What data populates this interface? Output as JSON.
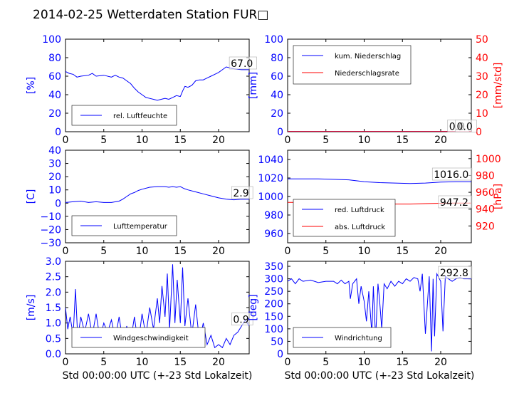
{
  "figure_title": "2014-02-25 Wetterdaten Station FUR□",
  "colors": {
    "blue": "#0000ff",
    "red": "#ff0000",
    "black": "#000000"
  },
  "chart_data": [
    {
      "id": "humidity",
      "type": "line",
      "xlim": [
        0,
        24
      ],
      "x_ticks": [
        "0",
        "5",
        "10",
        "15",
        "20"
      ],
      "ylim": [
        0,
        100
      ],
      "y_ticks": [
        "0",
        "20",
        "40",
        "60",
        "80",
        "100"
      ],
      "ylabel": "[%]",
      "xlabel": "",
      "grid": false,
      "legend_placement": "lower-left",
      "series": [
        {
          "name": "rel. Luftfeuchte",
          "color": "#0000ff",
          "x": [
            0,
            0.5,
            1,
            1.5,
            2,
            3,
            3.5,
            4,
            5,
            6,
            6.5,
            7,
            7.5,
            8,
            8.5,
            9,
            9.5,
            10,
            10.5,
            11,
            11.5,
            12,
            12.5,
            13,
            13.5,
            14,
            14.5,
            15,
            15.3,
            15.6,
            16,
            16.5,
            17,
            17.5,
            18,
            18.5,
            19,
            19.5,
            20,
            20.5,
            21,
            22,
            23,
            24
          ],
          "y": [
            65,
            63,
            62,
            59,
            60,
            61,
            63,
            60,
            61,
            59,
            61,
            59,
            58,
            55,
            52,
            47,
            43,
            40,
            37,
            36,
            35,
            34,
            35,
            36,
            35,
            37,
            39,
            38,
            44,
            49,
            48,
            50,
            55,
            56,
            56,
            58,
            60,
            62,
            64,
            67,
            70,
            68,
            67,
            67
          ]
        }
      ],
      "annotations": [
        {
          "text": "67.0",
          "x": 21.5,
          "y": 70
        }
      ]
    },
    {
      "id": "precipitation",
      "type": "line",
      "xlim": [
        0,
        24
      ],
      "x_ticks": [
        "0",
        "5",
        "10",
        "15",
        "20"
      ],
      "ylim": [
        0,
        100
      ],
      "y_ticks": [
        "0",
        "20",
        "40",
        "60",
        "80",
        "100"
      ],
      "ylabel": "[mm]",
      "ylim_right": [
        0,
        50
      ],
      "y_ticks_right": [
        "0",
        "10",
        "20",
        "30",
        "40",
        "50"
      ],
      "ylabel_right": "[mm/std]",
      "xlabel": "",
      "grid": false,
      "legend_placement": "upper-left",
      "series": [
        {
          "name": "kum. Niederschlag",
          "color": "#0000ff",
          "axis": "left",
          "x": [
            0,
            24
          ],
          "y": [
            0.3,
            0.3
          ]
        },
        {
          "name": "Niederschlagsrate",
          "color": "#ff0000",
          "axis": "right",
          "x": [
            0,
            24
          ],
          "y": [
            0.1,
            0.1
          ]
        }
      ],
      "annotations": [
        {
          "text": "0.0",
          "x": 21.0,
          "y": 2
        },
        {
          "text": "0.0",
          "x": 22.0,
          "y": 2
        }
      ]
    },
    {
      "id": "temperature",
      "type": "line",
      "xlim": [
        0,
        24
      ],
      "x_ticks": [
        "0",
        "5",
        "10",
        "15",
        "20"
      ],
      "ylim": [
        -30,
        40
      ],
      "y_ticks": [
        "−30",
        "−20",
        "−10",
        "0",
        "10",
        "20",
        "30",
        "40"
      ],
      "ylabel": "[C]",
      "xlabel": "",
      "grid": false,
      "legend_placement": "lower-left",
      "series": [
        {
          "name": "Lufttemperatur",
          "color": "#0000ff",
          "x": [
            0,
            1,
            2,
            3,
            4,
            5,
            6,
            7,
            7.5,
            8,
            8.5,
            9,
            9.5,
            10,
            11,
            12,
            13,
            13.5,
            14,
            14.5,
            15,
            15.5,
            16,
            17,
            18,
            19,
            20,
            21,
            22,
            23,
            24
          ],
          "y": [
            0.5,
            1,
            1.5,
            0.5,
            1,
            0.5,
            0.5,
            1.5,
            3,
            5,
            7,
            8,
            9.5,
            10.5,
            12,
            12.5,
            12.5,
            12,
            12.5,
            12,
            12.5,
            11,
            10,
            8.5,
            7,
            5.5,
            4,
            3,
            2.5,
            3,
            2.9
          ]
        }
      ],
      "annotations": [
        {
          "text": "2.9",
          "x": 21.8,
          "y": 5
        }
      ]
    },
    {
      "id": "pressure",
      "type": "line",
      "xlim": [
        0,
        24
      ],
      "x_ticks": [
        "0",
        "5",
        "10",
        "15",
        "20"
      ],
      "ylim": [
        950,
        1050
      ],
      "y_ticks": [
        "960",
        "980",
        "1000",
        "1020",
        "1040"
      ],
      "ylabel": "",
      "ylim_right": [
        900,
        1010
      ],
      "y_ticks_right": [
        "920",
        "940",
        "960",
        "980",
        "1000"
      ],
      "ylabel_right": "[hPa]",
      "xlabel": "",
      "grid": false,
      "legend_placement": "lower-left",
      "series": [
        {
          "name": "red. Luftdruck",
          "color": "#0000ff",
          "axis": "left",
          "x": [
            0,
            2,
            4,
            6,
            8,
            10,
            12,
            14,
            16,
            18,
            20,
            22,
            24
          ],
          "y": [
            1019,
            1019,
            1019,
            1018.5,
            1018,
            1016,
            1015,
            1014.5,
            1014,
            1014.5,
            1015.5,
            1016,
            1016
          ]
        },
        {
          "name": "abs. Luftdruck",
          "color": "#ff0000",
          "axis": "right",
          "x": [
            0,
            2,
            4,
            6,
            8,
            10,
            12,
            14,
            16,
            18,
            20,
            22,
            24
          ],
          "y": [
            948,
            948,
            948,
            947.5,
            947,
            946.5,
            946,
            946,
            946,
            946.5,
            947,
            947.2,
            947.2
          ]
        }
      ],
      "annotations": [
        {
          "text": "1016.0",
          "x": 19.0,
          "y": 1020
        },
        {
          "text": "947.2",
          "x": 19.8,
          "y": 990
        }
      ]
    },
    {
      "id": "wind_speed",
      "type": "line",
      "xlim": [
        0,
        24
      ],
      "x_ticks": [
        "0",
        "5",
        "10",
        "15",
        "20"
      ],
      "ylim": [
        0,
        3
      ],
      "y_ticks": [
        "0.0",
        "0.5",
        "1.0",
        "1.5",
        "2.0",
        "2.5",
        "3.0"
      ],
      "ylabel": "[m/s]",
      "xlabel": "Std 00:00:00 UTC (+-23 Std Lokalzeit)",
      "grid": false,
      "legend_placement": "lower-left",
      "series": [
        {
          "name": "Windgeschwindigkeit",
          "color": "#0000ff",
          "x": [
            0,
            0.3,
            0.6,
            1,
            1.3,
            1.6,
            2,
            2.5,
            3,
            3.5,
            4,
            4.5,
            5,
            5.5,
            6,
            6.5,
            7,
            7.5,
            8,
            8.5,
            9,
            9.5,
            10,
            10.5,
            11,
            11.5,
            12,
            12.3,
            12.6,
            13,
            13.3,
            13.6,
            14,
            14.3,
            14.6,
            15,
            15.3,
            15.6,
            16,
            16.5,
            17,
            17.5,
            18,
            18.5,
            19,
            19.5,
            20,
            20.5,
            21,
            21.5,
            22,
            22.5,
            23,
            23.5,
            24
          ],
          "y": [
            1.5,
            0.8,
            1.2,
            0.6,
            2.1,
            0.5,
            1.2,
            0.7,
            1.3,
            0.6,
            1.3,
            0.5,
            1.0,
            0.7,
            1.1,
            0.5,
            1.2,
            0.4,
            0.9,
            0.4,
            1.2,
            0.3,
            1.3,
            0.6,
            1.5,
            0.8,
            1.8,
            1.0,
            2.2,
            1.2,
            2.6,
            0.8,
            2.9,
            1.0,
            2.4,
            1.0,
            2.8,
            0.9,
            1.8,
            0.6,
            1.6,
            0.4,
            1.0,
            0.3,
            0.6,
            0.2,
            0.3,
            0.2,
            0.5,
            0.3,
            0.6,
            0.7,
            0.9,
            1.1,
            0.9
          ]
        }
      ],
      "annotations": [
        {
          "text": "0.9",
          "x": 21.8,
          "y": 1.0
        }
      ]
    },
    {
      "id": "wind_direction",
      "type": "line",
      "xlim": [
        0,
        24
      ],
      "x_ticks": [
        "0",
        "5",
        "10",
        "15",
        "20"
      ],
      "ylim": [
        0,
        370
      ],
      "y_ticks": [
        "0",
        "50",
        "100",
        "150",
        "200",
        "250",
        "300",
        "350"
      ],
      "ylabel": "[deg]",
      "xlabel": "Std 00:00:00 UTC (+-23 Std Lokalzeit)",
      "grid": false,
      "legend_placement": "lower-left",
      "series": [
        {
          "name": "Windrichtung",
          "color": "#0000ff",
          "x": [
            0,
            0.5,
            1,
            1.5,
            2,
            3,
            4,
            5,
            6,
            6.5,
            7,
            7.5,
            8,
            8.2,
            8.5,
            9,
            9.3,
            9.6,
            10,
            10.3,
            10.6,
            11,
            11.2,
            11.5,
            11.8,
            12,
            12.3,
            12.6,
            13,
            13.5,
            14,
            14.5,
            15,
            15.5,
            16,
            16.5,
            17,
            17.3,
            17.6,
            18,
            18.5,
            18.8,
            19,
            19.2,
            19.5,
            20,
            20.3,
            20.6,
            21,
            21.5,
            22,
            22.5,
            23,
            23.5,
            24
          ],
          "y": [
            290,
            300,
            280,
            300,
            290,
            295,
            285,
            290,
            290,
            280,
            295,
            280,
            290,
            220,
            280,
            300,
            200,
            270,
            210,
            130,
            250,
            80,
            270,
            60,
            280,
            220,
            100,
            280,
            260,
            290,
            270,
            290,
            280,
            300,
            290,
            305,
            300,
            250,
            320,
            80,
            310,
            10,
            300,
            70,
            320,
            290,
            90,
            310,
            300,
            290,
            300,
            305,
            300,
            300,
            300
          ]
        }
      ],
      "annotations": [
        {
          "text": "292.8",
          "x": 19.8,
          "y": 310
        }
      ]
    }
  ]
}
